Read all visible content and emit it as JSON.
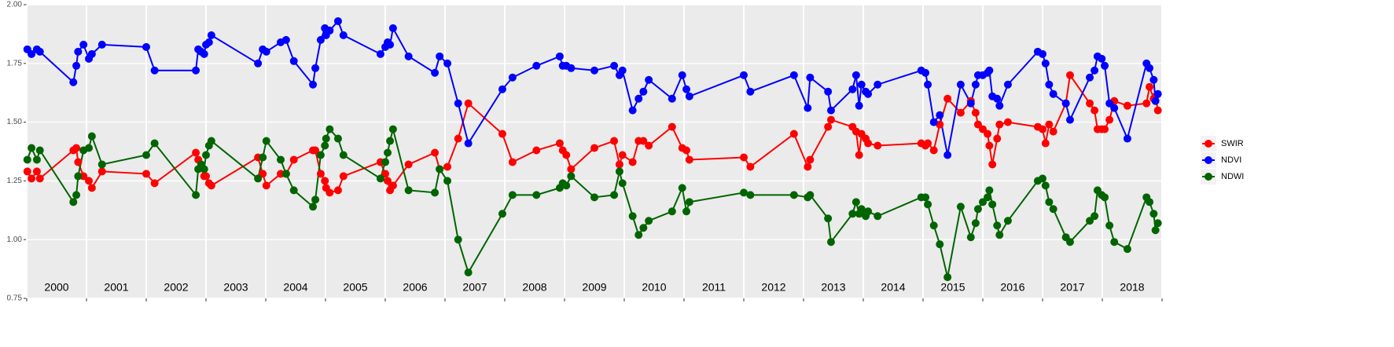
{
  "chart_data": {
    "type": "line",
    "x": [
      2000.01,
      2000.08,
      2000.17,
      2000.22,
      2000.78,
      2000.83,
      2000.86,
      2000.95,
      2001.04,
      2001.09,
      2001.26,
      2002.0,
      2002.14,
      2002.83,
      2002.87,
      2002.92,
      2002.97,
      2003.0,
      2003.05,
      2003.09,
      2003.87,
      2003.95,
      2004.01,
      2004.25,
      2004.34,
      2004.47,
      2004.79,
      2004.83,
      2004.92,
      2004.99,
      2005.01,
      2005.07,
      2005.21,
      2005.3,
      2005.92,
      2006.0,
      2006.04,
      2006.08,
      2006.13,
      2006.39,
      2006.83,
      2006.91,
      2007.04,
      2007.22,
      2007.39,
      2007.96,
      2008.13,
      2008.53,
      2008.92,
      2008.97,
      2009.03,
      2009.11,
      2009.5,
      2009.83,
      2009.92,
      2009.97,
      2010.14,
      2010.24,
      2010.32,
      2010.41,
      2010.8,
      2010.97,
      2011.04,
      2011.09,
      2012.0,
      2012.11,
      2012.84,
      2013.07,
      2013.11,
      2013.41,
      2013.46,
      2013.82,
      2013.88,
      2013.93,
      2013.97,
      2014.04,
      2014.08,
      2014.24,
      2014.97,
      2015.04,
      2015.08,
      2015.18,
      2015.28,
      2015.41,
      2015.63,
      2015.8,
      2015.88,
      2015.92,
      2016.0,
      2016.08,
      2016.11,
      2016.16,
      2016.24,
      2016.28,
      2016.42,
      2016.92,
      2017.0,
      2017.05,
      2017.11,
      2017.18,
      2017.39,
      2017.46,
      2017.79,
      2017.87,
      2017.92,
      2017.99,
      2018.04,
      2018.12,
      2018.2,
      2018.42,
      2018.74,
      2018.79,
      2018.86,
      2018.89,
      2018.93
    ],
    "series": [
      {
        "name": "SWIR",
        "color": "#ff0000",
        "values": [
          1.29,
          1.26,
          1.29,
          1.26,
          1.38,
          1.39,
          1.33,
          1.27,
          1.25,
          1.22,
          1.29,
          1.28,
          1.24,
          1.37,
          1.34,
          1.31,
          1.27,
          1.27,
          1.24,
          1.23,
          1.35,
          1.28,
          1.23,
          1.28,
          1.28,
          1.34,
          1.38,
          1.38,
          1.28,
          1.25,
          1.22,
          1.2,
          1.21,
          1.27,
          1.33,
          1.28,
          1.25,
          1.21,
          1.23,
          1.32,
          1.37,
          1.3,
          1.31,
          1.43,
          1.58,
          1.45,
          1.33,
          1.38,
          1.41,
          1.38,
          1.36,
          1.3,
          1.39,
          1.42,
          1.32,
          1.36,
          1.33,
          1.42,
          1.42,
          1.4,
          1.48,
          1.39,
          1.38,
          1.34,
          1.35,
          1.31,
          1.45,
          1.31,
          1.34,
          1.48,
          1.51,
          1.48,
          1.46,
          1.36,
          1.45,
          1.43,
          1.41,
          1.4,
          1.41,
          1.4,
          1.41,
          1.38,
          1.49,
          1.6,
          1.54,
          1.59,
          1.54,
          1.49,
          1.47,
          1.45,
          1.4,
          1.32,
          1.43,
          1.49,
          1.5,
          1.48,
          1.47,
          1.41,
          1.49,
          1.46,
          1.58,
          1.7,
          1.58,
          1.55,
          1.47,
          1.47,
          1.47,
          1.51,
          1.59,
          1.57,
          1.58,
          1.65,
          1.6,
          1.61,
          1.55
        ]
      },
      {
        "name": "NDVI",
        "color": "#0000ff",
        "values": [
          1.81,
          1.79,
          1.81,
          1.8,
          1.67,
          1.74,
          1.8,
          1.83,
          1.77,
          1.79,
          1.83,
          1.82,
          1.72,
          1.72,
          1.81,
          1.8,
          1.79,
          1.83,
          1.84,
          1.87,
          1.75,
          1.81,
          1.8,
          1.84,
          1.85,
          1.76,
          1.66,
          1.73,
          1.85,
          1.9,
          1.87,
          1.89,
          1.93,
          1.87,
          1.79,
          1.82,
          1.84,
          1.83,
          1.9,
          1.78,
          1.71,
          1.78,
          1.75,
          1.58,
          1.41,
          1.64,
          1.69,
          1.74,
          1.78,
          1.74,
          1.74,
          1.73,
          1.72,
          1.74,
          1.7,
          1.72,
          1.55,
          1.6,
          1.63,
          1.68,
          1.6,
          1.7,
          1.64,
          1.61,
          1.7,
          1.63,
          1.7,
          1.56,
          1.69,
          1.63,
          1.55,
          1.64,
          1.7,
          1.57,
          1.66,
          1.63,
          1.62,
          1.66,
          1.72,
          1.71,
          1.66,
          1.5,
          1.53,
          1.36,
          1.66,
          1.58,
          1.66,
          1.7,
          1.7,
          1.71,
          1.72,
          1.61,
          1.6,
          1.57,
          1.66,
          1.8,
          1.79,
          1.75,
          1.66,
          1.62,
          1.58,
          1.51,
          1.69,
          1.72,
          1.78,
          1.77,
          1.74,
          1.58,
          1.56,
          1.43,
          1.75,
          1.73,
          1.68,
          1.59,
          1.62
        ]
      },
      {
        "name": "NDWI",
        "color": "#006400",
        "values": [
          1.34,
          1.39,
          1.34,
          1.38,
          1.16,
          1.19,
          1.27,
          1.38,
          1.39,
          1.44,
          1.32,
          1.36,
          1.41,
          1.19,
          1.3,
          1.32,
          1.3,
          1.36,
          1.4,
          1.42,
          1.26,
          1.35,
          1.42,
          1.34,
          1.28,
          1.21,
          1.14,
          1.17,
          1.36,
          1.4,
          1.43,
          1.47,
          1.43,
          1.36,
          1.26,
          1.33,
          1.37,
          1.42,
          1.47,
          1.21,
          1.2,
          1.3,
          1.25,
          1.0,
          0.86,
          1.11,
          1.19,
          1.19,
          1.22,
          1.24,
          1.23,
          1.27,
          1.18,
          1.19,
          1.29,
          1.24,
          1.1,
          1.02,
          1.05,
          1.08,
          1.12,
          1.22,
          1.12,
          1.16,
          1.2,
          1.19,
          1.19,
          1.18,
          1.19,
          1.09,
          0.99,
          1.11,
          1.16,
          1.11,
          1.13,
          1.1,
          1.12,
          1.1,
          1.18,
          1.18,
          1.15,
          1.06,
          0.98,
          0.84,
          1.14,
          1.01,
          1.07,
          1.13,
          1.16,
          1.18,
          1.21,
          1.15,
          1.06,
          1.02,
          1.08,
          1.25,
          1.26,
          1.23,
          1.16,
          1.13,
          1.01,
          0.99,
          1.08,
          1.1,
          1.21,
          1.19,
          1.18,
          1.06,
          0.99,
          0.96,
          1.18,
          1.16,
          1.11,
          1.04,
          1.07
        ]
      }
    ],
    "xlim": [
      2000,
      2019
    ],
    "xticks": [
      2000,
      2001,
      2002,
      2003,
      2004,
      2005,
      2006,
      2007,
      2008,
      2009,
      2010,
      2011,
      2012,
      2013,
      2014,
      2015,
      2016,
      2017,
      2018,
      2019
    ],
    "year_labels": [
      "2000",
      "2001",
      "2002",
      "2003",
      "2004",
      "2005",
      "2006",
      "2007",
      "2008",
      "2009",
      "2010",
      "2011",
      "2012",
      "2013",
      "2014",
      "2015",
      "2016",
      "2017",
      "2018"
    ],
    "ylim": [
      0.75,
      2.0
    ],
    "yticks": [
      0.75,
      {
        "value": 1,
        "label": "1.00"
      },
      1.25,
      {
        "value": 1.5,
        "label": "1.50"
      },
      1.75,
      {
        "value": 2,
        "label": "2.00"
      }
    ],
    "grid": true
  }
}
